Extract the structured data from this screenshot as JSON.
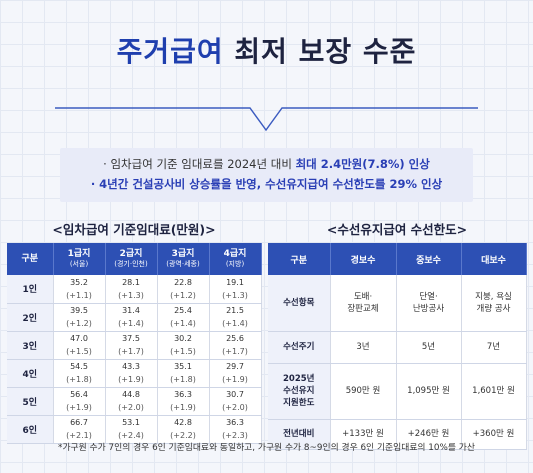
{
  "title": {
    "highlight": "주거급여",
    "rest": "최저 보장 수준"
  },
  "info": {
    "line1_prefix": "· 임차급여 기준 임대료를 2024년 대비",
    "line1_bold": "최대 2.4만원(7.8%) 인상",
    "line2": "· 4년간 건설공사비 상승률을 반영, 수선유지급여 수선한도를 29% 인상"
  },
  "left_table": {
    "title": "<임차급여 기준임대료(만원)>",
    "headers": [
      {
        "main": "구분",
        "sub": ""
      },
      {
        "main": "1급지",
        "sub": "(서울)"
      },
      {
        "main": "2급지",
        "sub": "(경기·인천)"
      },
      {
        "main": "3급지",
        "sub": "(광역·세종)"
      },
      {
        "main": "4급지",
        "sub": "(지방)"
      }
    ],
    "rows": [
      {
        "label": "1인",
        "values": [
          "35.2",
          "28.1",
          "22.8",
          "19.1"
        ],
        "changes": [
          "(+1.1)",
          "(+1.3)",
          "(+1.2)",
          "(+1.3)"
        ]
      },
      {
        "label": "2인",
        "values": [
          "39.5",
          "31.4",
          "25.4",
          "21.5"
        ],
        "changes": [
          "(+1.2)",
          "(+1.4)",
          "(+1.4)",
          "(+1.4)"
        ]
      },
      {
        "label": "3인",
        "values": [
          "47.0",
          "37.5",
          "30.2",
          "25.6"
        ],
        "changes": [
          "(+1.5)",
          "(+1.7)",
          "(+1.5)",
          "(+1.7)"
        ]
      },
      {
        "label": "4인",
        "values": [
          "54.5",
          "43.3",
          "35.1",
          "29.7"
        ],
        "changes": [
          "(+1.8)",
          "(+1.9)",
          "(+1.8)",
          "(+1.9)"
        ]
      },
      {
        "label": "5인",
        "values": [
          "56.4",
          "44.8",
          "36.3",
          "30.7"
        ],
        "changes": [
          "(+1.9)",
          "(+2.0)",
          "(+1.9)",
          "(+2.0)"
        ]
      },
      {
        "label": "6인",
        "values": [
          "66.7",
          "53.1",
          "42.8",
          "36.3"
        ],
        "changes": [
          "(+2.1)",
          "(+2.4)",
          "(+2.2)",
          "(+2.3)"
        ]
      }
    ]
  },
  "right_table": {
    "title": "<수선유지급여 수선한도>",
    "headers": [
      "구분",
      "경보수",
      "중보수",
      "대보수"
    ],
    "rows": [
      {
        "label": "수선항목",
        "values": [
          "도배·\n장판교체",
          "단열·\n난방공사",
          "지붕, 욕실\n개량 공사"
        ]
      },
      {
        "label": "수선주기",
        "values": [
          "3년",
          "5년",
          "7년"
        ]
      },
      {
        "label": "2025년\n수선유지\n지원한도",
        "values": [
          "590만 원",
          "1,095만 원",
          "1,601만 원"
        ]
      },
      {
        "label": "전년대비",
        "values": [
          "+133만 원",
          "+246만 원",
          "+360만 원"
        ]
      }
    ]
  },
  "footnote": "*가구원 수가 7인의 경우 6인 기준임대료와 동일하고, 가구원 수가 8~9인의 경우 6인 기준임대료의 10%를 가산",
  "colors": {
    "primary": "#2d50b4",
    "title_highlight": "#1f3fae",
    "accent_text": "#2a3fb5"
  }
}
